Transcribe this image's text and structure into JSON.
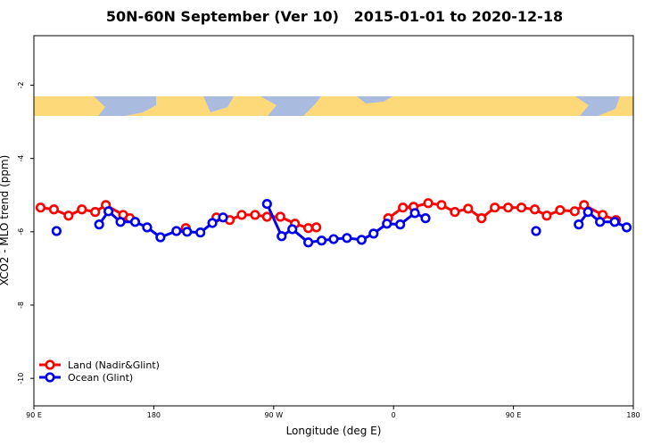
{
  "chart_data": {
    "type": "line",
    "title": "50N-60N September (Ver 10)   2015-01-01 to 2020-12-18",
    "x_label": "Longitude (deg E)",
    "y_label": "XCO2 - MLO trend (ppm)",
    "xlim": [
      90,
      540
    ],
    "ylim": [
      -10.75,
      -0.65
    ],
    "xticks": [
      {
        "value": 90,
        "label": "90 E"
      },
      180,
      {
        "value": 270,
        "label": "90 W"
      },
      {
        "value": 360,
        "label": "0"
      },
      {
        "value": 450,
        "label": "90 E"
      },
      {
        "value": 540,
        "label": "180"
      }
    ],
    "yticks": [
      -10,
      -8,
      -6,
      -4,
      -2
    ],
    "legend": "bottom-left",
    "series": [
      {
        "name": "Land (Nadir&Glint)",
        "color": "#ff0000",
        "x": [
          95,
          105,
          116,
          126,
          136,
          144,
          157,
          162,
          null,
          204,
          null,
          227,
          237,
          246,
          256,
          265,
          275,
          286,
          296,
          302,
          null,
          356,
          367,
          375,
          386,
          396,
          406,
          416,
          426,
          436,
          446,
          456,
          466,
          475,
          485,
          496,
          503,
          517,
          527
        ],
        "values": [
          -5.34,
          -5.39,
          -5.56,
          -5.39,
          -5.46,
          -5.27,
          -5.54,
          -5.63,
          null,
          -5.9,
          null,
          -5.61,
          -5.68,
          -5.54,
          -5.54,
          -5.59,
          -5.59,
          -5.78,
          -5.9,
          -5.88,
          null,
          -5.63,
          -5.34,
          -5.32,
          -5.22,
          -5.27,
          -5.46,
          -5.37,
          -5.63,
          -5.34,
          -5.34,
          -5.34,
          -5.39,
          -5.56,
          -5.41,
          -5.44,
          -5.27,
          -5.54,
          -5.68
        ]
      },
      {
        "name": "Ocean (Glint)",
        "color": "#0000ee",
        "x": [
          107,
          null,
          139,
          146,
          155,
          166,
          175,
          185,
          197,
          205,
          215,
          224,
          232,
          null,
          265,
          276,
          284,
          296,
          306,
          315,
          325,
          336,
          345,
          355,
          365,
          376,
          384,
          null,
          467,
          null,
          499,
          506,
          515,
          526,
          535
        ],
        "values": [
          -5.98,
          null,
          -5.8,
          -5.44,
          -5.73,
          -5.73,
          -5.88,
          -6.15,
          -5.98,
          -6.0,
          -6.02,
          -5.76,
          -5.61,
          null,
          -5.24,
          -6.12,
          -5.93,
          -6.29,
          -6.24,
          -6.2,
          -6.17,
          -6.22,
          -6.05,
          -5.78,
          -5.8,
          -5.49,
          -5.63,
          null,
          -5.98,
          null,
          -5.8,
          -5.46,
          -5.73,
          -5.73,
          -5.88
        ]
      }
    ]
  }
}
